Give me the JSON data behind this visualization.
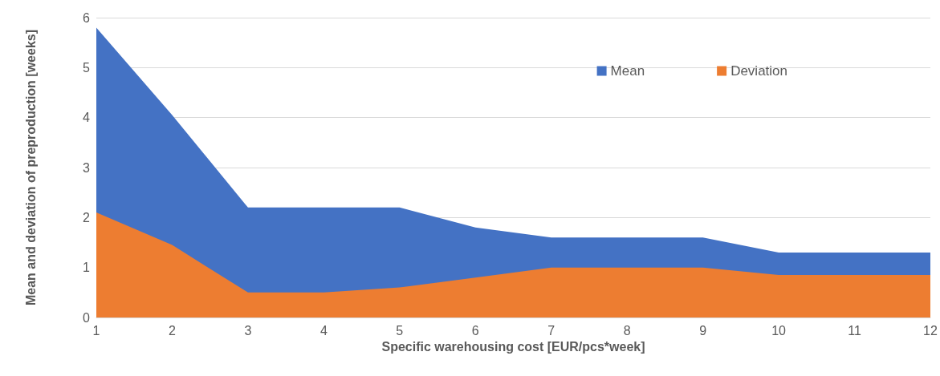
{
  "chart_data": {
    "type": "area",
    "xlabel": "Specific warehousing cost [EUR/pcs*week]",
    "ylabel": "Mean and deviation of preproduction [weeks]",
    "x": [
      1,
      2,
      3,
      4,
      5,
      6,
      7,
      8,
      9,
      10,
      11,
      12
    ],
    "series": [
      {
        "name": "Mean",
        "color": "#4472c4",
        "values": [
          5.8,
          4.05,
          2.2,
          2.2,
          2.2,
          1.8,
          1.6,
          1.6,
          1.6,
          1.3,
          1.3,
          1.3
        ]
      },
      {
        "name": "Deviation",
        "color": "#ed7d31",
        "values": [
          2.1,
          1.45,
          0.5,
          0.5,
          0.6,
          0.8,
          1.0,
          1.0,
          1.0,
          0.85,
          0.85,
          0.85
        ]
      }
    ],
    "xlim": [
      1,
      12
    ],
    "xticks": [
      1,
      2,
      3,
      4,
      5,
      6,
      7,
      8,
      9,
      10,
      11,
      12
    ],
    "ylim": [
      0,
      6
    ],
    "yticks": [
      0,
      1,
      2,
      3,
      4,
      5,
      6
    ],
    "grid": "y",
    "legend": "top right"
  }
}
